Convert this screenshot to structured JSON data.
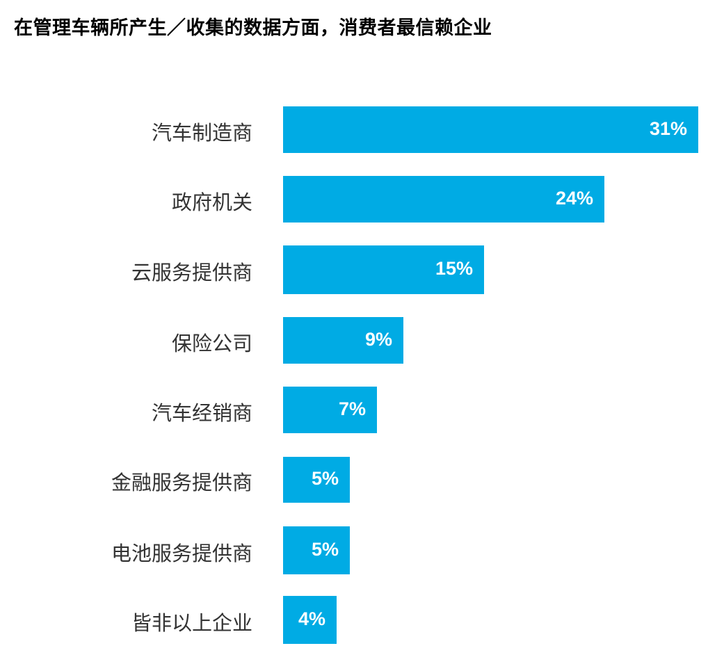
{
  "chart_data": {
    "type": "bar",
    "orientation": "horizontal",
    "title": "在管理车辆所产生／收集的数据方面，消费者最信赖企业",
    "categories": [
      "汽车制造商",
      "政府机关",
      "云服务提供商",
      "保险公司",
      "汽车经销商",
      "金融服务提供商",
      "电池服务提供商",
      "皆非以上企业"
    ],
    "values": [
      31,
      24,
      15,
      9,
      7,
      5,
      5,
      4
    ],
    "value_labels": [
      "31%",
      "24%",
      "15%",
      "9%",
      "7%",
      "5%",
      "5%",
      "4%"
    ],
    "xlabel": "",
    "ylabel": "",
    "unit": "%",
    "grid": false,
    "legend": null,
    "bar_color": "#00abe4"
  }
}
